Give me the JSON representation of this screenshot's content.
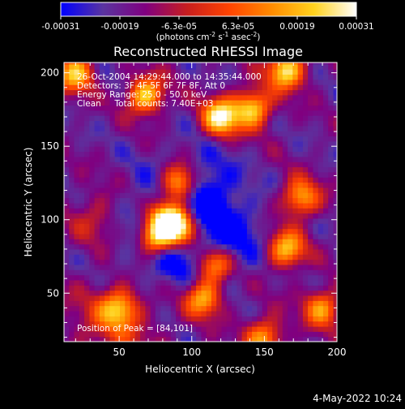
{
  "colorbar": {
    "tick_labels": [
      "-0.00031",
      "-0.00019",
      "-6.3e-05",
      "6.3e-05",
      "0.00019",
      "0.00031"
    ],
    "units_prefix": "(photons cm",
    "units_exp1": "-2",
    "units_mid1": " s",
    "units_exp2": "-1",
    "units_mid2": " asec",
    "units_exp3": "-2",
    "units_suffix": ")"
  },
  "chart_data": {
    "type": "heatmap",
    "title": "Reconstructed RHESSI Image",
    "xlabel": "Heliocentric X (arcsec)",
    "ylabel": "Heliocentric Y (arcsec)",
    "xlim": [
      12,
      200
    ],
    "ylim": [
      17,
      207
    ],
    "x_ticks": [
      50,
      100,
      150,
      200
    ],
    "y_ticks": [
      50,
      100,
      150,
      200
    ],
    "colormap": [
      "#0000ff",
      "#5a34a0",
      "#800080",
      "#c81e1e",
      "#ff4400",
      "#ff8c00",
      "#ffd21e",
      "#ffffff"
    ],
    "peak": [
      84,
      101
    ],
    "bright_regions": [
      {
        "x": 84,
        "y": 101,
        "level": 1.0
      },
      {
        "x": 75,
        "y": 88,
        "level": 0.85
      },
      {
        "x": 95,
        "y": 93,
        "level": 0.75
      },
      {
        "x": 92,
        "y": 125,
        "level": 0.8
      },
      {
        "x": 120,
        "y": 170,
        "level": 0.8
      },
      {
        "x": 142,
        "y": 176,
        "level": 0.7
      },
      {
        "x": 165,
        "y": 202,
        "level": 0.75
      },
      {
        "x": 68,
        "y": 185,
        "level": 0.7
      },
      {
        "x": 20,
        "y": 200,
        "level": 0.65
      },
      {
        "x": 115,
        "y": 70,
        "level": 0.7
      },
      {
        "x": 108,
        "y": 47,
        "level": 0.65
      },
      {
        "x": 50,
        "y": 40,
        "level": 0.55
      },
      {
        "x": 165,
        "y": 80,
        "level": 0.65
      },
      {
        "x": 175,
        "y": 115,
        "level": 0.6
      },
      {
        "x": 150,
        "y": 20,
        "level": 0.55
      },
      {
        "x": 190,
        "y": 40,
        "level": 0.55
      }
    ],
    "annotations": {
      "time_range": "26-Oct-2004 14:29:44.000 to 14:35:44.000",
      "detectors": "Detectors: 3F 4F 5F 6F 7F 8F, Att 0",
      "energy": "Energy Range: 25.0 - 50.0 keV",
      "method": "Clean     Total counts: 7.40E+03",
      "peak_label": "Position of Peak = [84,101]"
    }
  },
  "footer": {
    "date": "4-May-2022 10:24"
  }
}
